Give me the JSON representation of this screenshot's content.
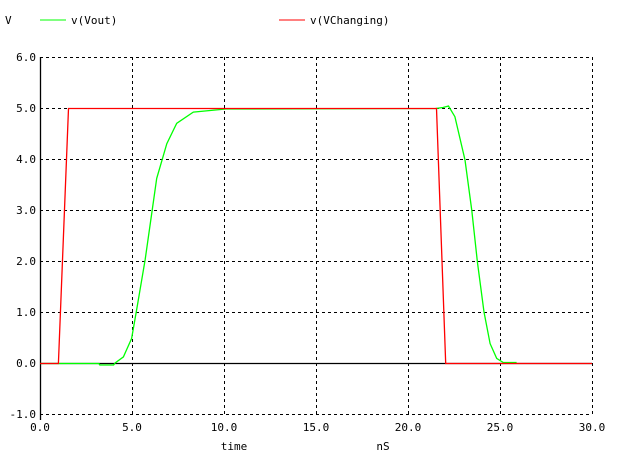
{
  "chart_data": {
    "type": "line",
    "title": "",
    "ylabel": "V",
    "xlabel": "time",
    "xunit": "nS",
    "xlim": [
      0,
      30
    ],
    "ylim": [
      -1,
      6
    ],
    "grid": true,
    "legend_placement": "top",
    "x_ticks": [
      "0.0",
      "5.0",
      "10.0",
      "15.0",
      "20.0",
      "25.0",
      "30.0"
    ],
    "x_tick_values": [
      0,
      5,
      10,
      15,
      20,
      25,
      30
    ],
    "y_ticks": [
      "6.0",
      "5.0",
      "4.0",
      "3.0",
      "2.0",
      "1.0",
      "0.0",
      "-1.0"
    ],
    "y_tick_values": [
      6,
      5,
      4,
      3,
      2,
      1,
      0,
      -1
    ],
    "series": [
      {
        "name": "v(Vout)",
        "color": "#00ff00",
        "x": [
          0,
          3.2,
          3.25,
          4.0,
          4.08,
          4.53,
          4.98,
          5.25,
          5.71,
          6.07,
          6.34,
          6.89,
          7.43,
          8.33,
          10.1,
          21.5,
          21.9,
          22.2,
          22.55,
          23.1,
          23.47,
          23.77,
          24.13,
          24.46,
          24.82,
          25.18,
          25.9
        ],
        "y": [
          0,
          0,
          -0.03,
          -0.03,
          0.01,
          0.13,
          0.49,
          1.05,
          2.03,
          2.94,
          3.63,
          4.31,
          4.71,
          4.93,
          4.99,
          5.0,
          5.02,
          5.05,
          4.84,
          3.99,
          3.0,
          1.99,
          1.01,
          0.39,
          0.1,
          0.02,
          0.02
        ]
      },
      {
        "name": "v(VChanging)",
        "color": "#ff0000",
        "x": [
          0,
          1.0,
          1.55,
          21.55,
          22.05,
          30
        ],
        "y": [
          0,
          0,
          5,
          5,
          0,
          0
        ]
      }
    ]
  }
}
